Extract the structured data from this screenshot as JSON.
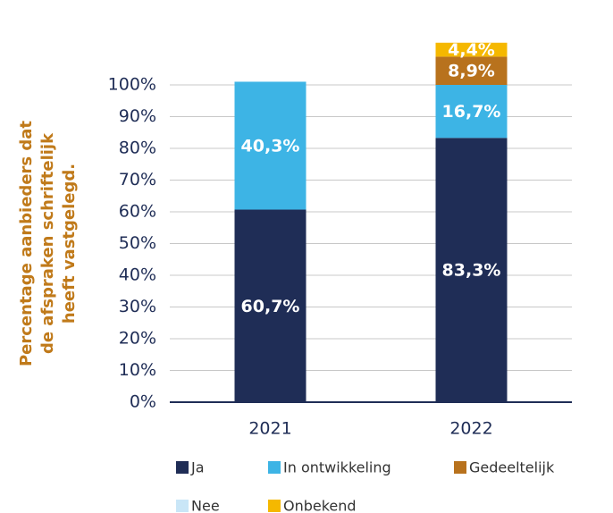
{
  "chart_data": {
    "type": "stacked_bar",
    "ylabel": [
      "Percentage aanbieders dat",
      "de afspraken schriftelijk",
      "heeft vastgelegd."
    ],
    "categories": [
      "2021",
      "2022"
    ],
    "series": [
      {
        "name": "Ja",
        "color": "#1f2d56",
        "values": [
          60.7,
          83.3
        ],
        "value_labels": [
          "60,7%",
          "83,3%"
        ]
      },
      {
        "name": "In ontwikkeling",
        "color": "#3db4e5",
        "values": [
          40.3,
          16.7
        ],
        "value_labels": [
          "40,3%",
          "16,7%"
        ]
      },
      {
        "name": "Gedeeltelijk",
        "color": "#b8721d",
        "values": [
          null,
          8.9
        ],
        "value_labels": [
          null,
          "8,9%"
        ]
      },
      {
        "name": "Nee",
        "color": "#c9e6f7",
        "values": [
          null,
          null
        ],
        "value_labels": [
          null,
          null
        ]
      },
      {
        "name": "Onbekend",
        "color": "#f5b800",
        "values": [
          null,
          4.4
        ],
        "value_labels": [
          null,
          "4,4%"
        ]
      }
    ],
    "ylim": [
      0,
      100
    ],
    "yticks": [
      {
        "value": 0,
        "label": "0%"
      },
      {
        "value": 10,
        "label": "10%"
      },
      {
        "value": 20,
        "label": "20%"
      },
      {
        "value": 30,
        "label": "30%"
      },
      {
        "value": 40,
        "label": "40%"
      },
      {
        "value": 50,
        "label": "50%"
      },
      {
        "value": 60,
        "label": "60%"
      },
      {
        "value": 70,
        "label": "70%"
      },
      {
        "value": 80,
        "label": "80%"
      },
      {
        "value": 90,
        "label": "90%"
      },
      {
        "value": 100,
        "label": "100%"
      }
    ],
    "grid": true
  }
}
